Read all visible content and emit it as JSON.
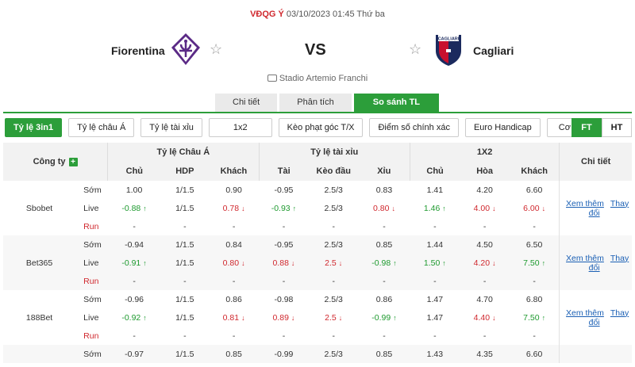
{
  "match": {
    "league": "VĐQG Ý",
    "datetime": "03/10/2023 01:45 Thứ ba",
    "home": "Fiorentina",
    "away": "Cagliari",
    "vs": "VS",
    "stadium": "Stadio Artemio Franchi",
    "away_logo_text": "CAGLIARI"
  },
  "tabs": [
    "Chi tiết",
    "Phân tích",
    "So sánh TL"
  ],
  "filters": [
    "Tỷ lệ 3in1",
    "Tỷ lệ châu Á",
    "Tỷ lệ tài xỉu",
    "1x2",
    "Kèo phạt góc T/X",
    "Điểm số chính xác",
    "Euro Handicap",
    "Cơ hội kép"
  ],
  "toggle": [
    "FT",
    "HT"
  ],
  "table": {
    "company_header": "Công ty",
    "groups": [
      "Tỷ lệ Châu Á",
      "Tỷ lệ tài xỉu",
      "1X2",
      "Chi tiết"
    ],
    "sub": [
      "Chủ",
      "HDP",
      "Khách",
      "Tài",
      "Kèo đầu",
      "Xỉu",
      "Chủ",
      "Hòa",
      "Khách"
    ],
    "link_more": "Xem thêm",
    "link_change": "Thay đổi",
    "rows": [
      {
        "company": "Sbobet",
        "lines": [
          {
            "type": "Sớm",
            "v": [
              "1.00",
              "1/1.5",
              "0.90",
              "-0.95",
              "2.5/3",
              "0.83",
              "1.41",
              "4.20",
              "6.60"
            ],
            "c": [
              "",
              "",
              "",
              "",
              "",
              "",
              "",
              "",
              ""
            ]
          },
          {
            "type": "Live",
            "v": [
              "-0.88",
              "1/1.5",
              "0.78",
              "-0.93",
              "2.5/3",
              "0.80",
              "1.46",
              "4.00",
              "6.00"
            ],
            "c": [
              "up",
              "",
              "down",
              "up",
              "",
              "down",
              "up",
              "down",
              "down"
            ]
          },
          {
            "type": "Run",
            "v": [
              "-",
              "-",
              "-",
              "-",
              "-",
              "-",
              "-",
              "-",
              "-"
            ],
            "c": [
              "",
              "",
              "",
              "",
              "",
              "",
              "",
              "",
              ""
            ]
          }
        ]
      },
      {
        "company": "Bet365",
        "lines": [
          {
            "type": "Sớm",
            "v": [
              "-0.94",
              "1/1.5",
              "0.84",
              "-0.95",
              "2.5/3",
              "0.85",
              "1.44",
              "4.50",
              "6.50"
            ],
            "c": [
              "",
              "",
              "",
              "",
              "",
              "",
              "",
              "",
              ""
            ]
          },
          {
            "type": "Live",
            "v": [
              "-0.91",
              "1/1.5",
              "0.80",
              "0.88",
              "2.5",
              "-0.98",
              "1.50",
              "4.20",
              "7.50"
            ],
            "c": [
              "up",
              "",
              "down",
              "down",
              "down",
              "up",
              "up",
              "down",
              "up"
            ]
          },
          {
            "type": "Run",
            "v": [
              "-",
              "-",
              "-",
              "-",
              "-",
              "-",
              "-",
              "-",
              "-"
            ],
            "c": [
              "",
              "",
              "",
              "",
              "",
              "",
              "",
              "",
              ""
            ]
          }
        ]
      },
      {
        "company": "188Bet",
        "lines": [
          {
            "type": "Sớm",
            "v": [
              "-0.96",
              "1/1.5",
              "0.86",
              "-0.98",
              "2.5/3",
              "0.86",
              "1.47",
              "4.70",
              "6.80"
            ],
            "c": [
              "",
              "",
              "",
              "",
              "",
              "",
              "",
              "",
              ""
            ]
          },
          {
            "type": "Live",
            "v": [
              "-0.92",
              "1/1.5",
              "0.81",
              "0.89",
              "2.5",
              "-0.99",
              "1.47",
              "4.40",
              "7.50"
            ],
            "c": [
              "up",
              "",
              "down",
              "down",
              "down",
              "up",
              "",
              "down",
              "up"
            ]
          },
          {
            "type": "Run",
            "v": [
              "-",
              "-",
              "-",
              "-",
              "-",
              "-",
              "-",
              "-",
              "-"
            ],
            "c": [
              "",
              "",
              "",
              "",
              "",
              "",
              "",
              "",
              ""
            ]
          }
        ]
      },
      {
        "company": "",
        "lines": [
          {
            "type": "Sớm",
            "v": [
              "-0.97",
              "1/1.5",
              "0.85",
              "-0.99",
              "2.5/3",
              "0.85",
              "1.43",
              "4.35",
              "6.60"
            ],
            "c": [
              "",
              "",
              "",
              "",
              "",
              "",
              "",
              "",
              ""
            ]
          }
        ]
      }
    ]
  }
}
